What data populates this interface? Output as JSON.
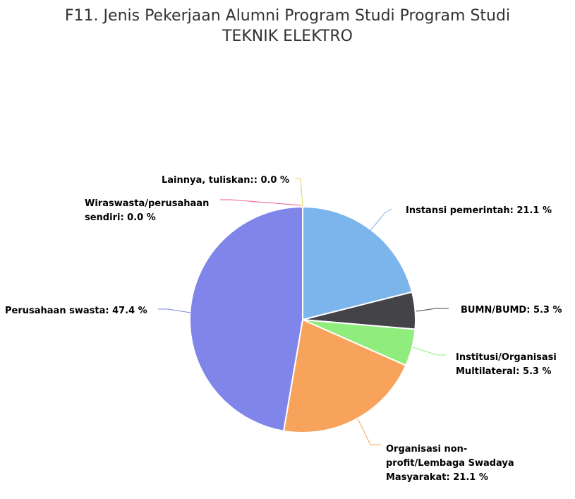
{
  "chart_data": {
    "type": "pie",
    "title": "F11. Jenis Pekerjaan Alumni Program Studi Program Studi",
    "subtitle": "TEKNIK ELEKTRO",
    "value_suffix": " %",
    "slices": [
      {
        "label": "Instansi pemerintah",
        "value": 21.1,
        "color": "#7cb5ec"
      },
      {
        "label": "BUMN/BUMD",
        "value": 5.3,
        "color": "#434348"
      },
      {
        "label": "Institusi/Organisasi Multilateral",
        "value": 5.3,
        "color": "#90ed7d"
      },
      {
        "label": "Organisasi non-profit/Lembaga Swadaya Masyarakat",
        "value": 21.1,
        "color": "#f7a35c"
      },
      {
        "label": "Perusahaan swasta",
        "value": 47.4,
        "color": "#8085e9"
      },
      {
        "label": "Wiraswasta/perusahaan sendiri",
        "value": 0.0,
        "color": "#f15c80"
      },
      {
        "label": "Lainnya, tuliskan:",
        "value": 0.0,
        "color": "#e4d354"
      }
    ]
  }
}
